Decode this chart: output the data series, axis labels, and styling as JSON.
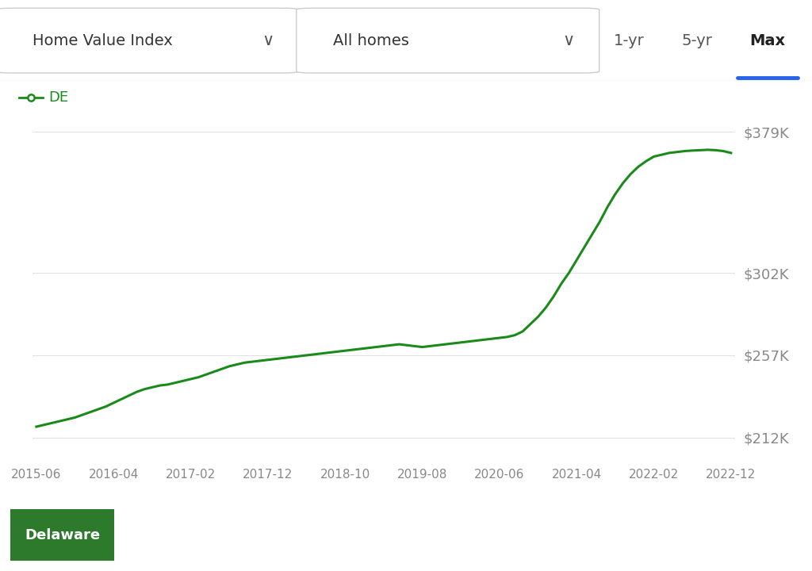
{
  "x_labels": [
    "2015-06",
    "2016-04",
    "2017-02",
    "2017-12",
    "2018-10",
    "2019-08",
    "2020-06",
    "2021-04",
    "2022-02",
    "2022-12"
  ],
  "y_ticks": [
    212000,
    257000,
    302000,
    379000
  ],
  "y_tick_labels": [
    "$212K",
    "$257K",
    "$302K",
    "$379K"
  ],
  "ylim": [
    200000,
    398000
  ],
  "line_color": "#1a8a1a",
  "line_width": 2.2,
  "background_color": "#ffffff",
  "legend_label": "DE",
  "legend_marker_color": "#1a8a1a",
  "header_text1": "Home Value Index",
  "header_text2": "All homes",
  "header_btn1": "1-yr",
  "header_btn2": "5-yr",
  "header_btn3": "Max",
  "active_btn_underline_color": "#2563eb",
  "delaware_btn_bg": "#2d7a2d",
  "delaware_btn_text": "Delaware",
  "grid_color": "#e0e0e0",
  "tick_label_color": "#888888",
  "data_x": [
    0,
    1,
    2,
    3,
    4,
    5,
    6,
    7,
    8,
    9,
    10,
    11,
    12,
    13,
    14,
    15,
    16,
    17,
    18,
    19,
    20,
    21,
    22,
    23,
    24,
    25,
    26,
    27,
    28,
    29,
    30,
    31,
    32,
    33,
    34,
    35,
    36,
    37,
    38,
    39,
    40,
    41,
    42,
    43,
    44,
    45,
    46,
    47,
    48,
    49,
    50,
    51,
    52,
    53,
    54,
    55,
    56,
    57,
    58,
    59,
    60,
    61,
    62,
    63,
    64,
    65,
    66,
    67,
    68,
    69,
    70,
    71,
    72,
    73,
    74,
    75,
    76,
    77,
    78,
    79,
    80,
    81,
    82,
    83,
    84,
    85,
    86,
    87,
    88,
    89,
    90
  ],
  "data_y": [
    218000,
    219000,
    220000,
    221000,
    222000,
    223000,
    224500,
    226000,
    227500,
    229000,
    231000,
    233000,
    235000,
    237000,
    238500,
    239500,
    240500,
    241000,
    242000,
    243000,
    244000,
    245000,
    246500,
    248000,
    249500,
    251000,
    252000,
    253000,
    253500,
    254000,
    254500,
    255000,
    255500,
    256000,
    256500,
    257000,
    257500,
    258000,
    258500,
    259000,
    259500,
    260000,
    260500,
    261000,
    261500,
    262000,
    262500,
    263000,
    262500,
    262000,
    261500,
    262000,
    262500,
    263000,
    263500,
    264000,
    264500,
    265000,
    265500,
    266000,
    266500,
    267000,
    268000,
    270000,
    274000,
    278000,
    283000,
    289000,
    296000,
    302000,
    309000,
    316000,
    323000,
    330000,
    338000,
    345000,
    351000,
    356000,
    360000,
    363000,
    365500,
    366500,
    367500,
    368000,
    368500,
    368800,
    369000,
    369200,
    369000,
    368500,
    367500
  ]
}
